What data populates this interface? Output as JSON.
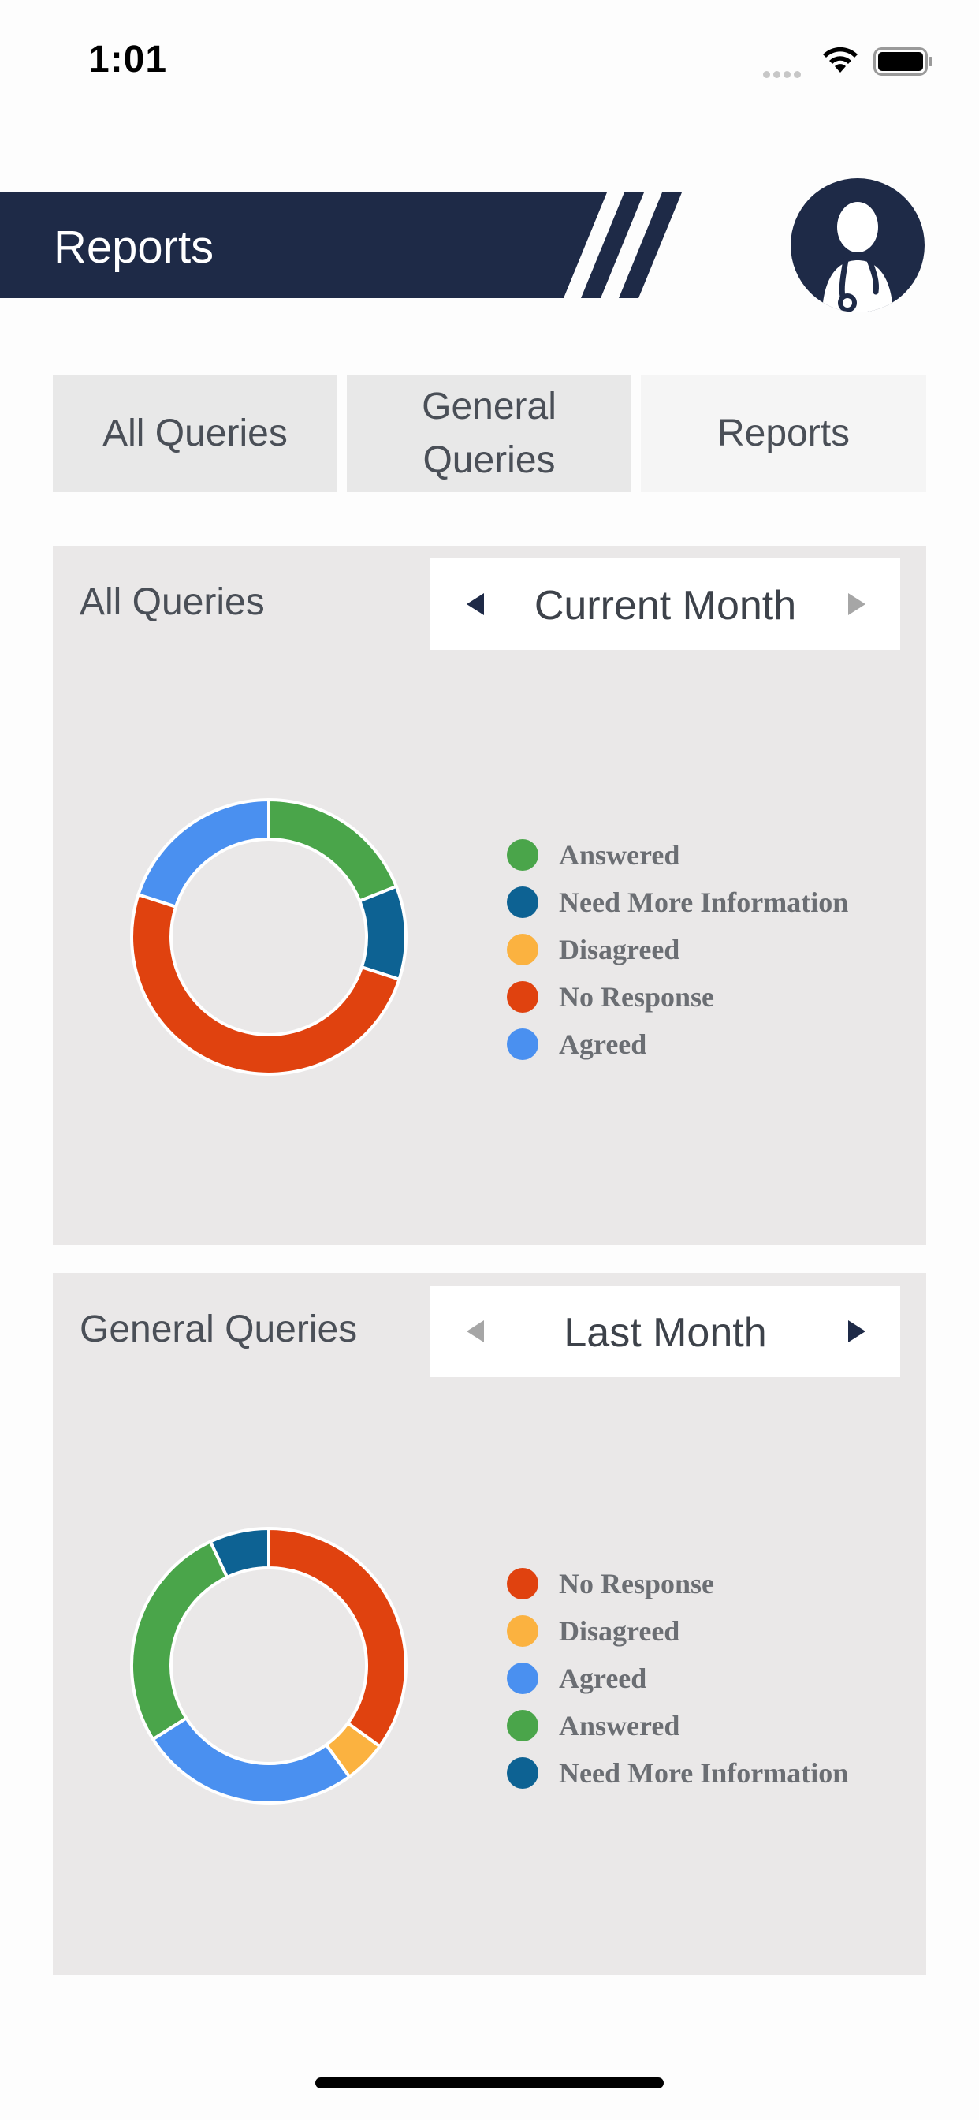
{
  "status_bar": {
    "time": "1:01",
    "icons": [
      "signal-dots-icon",
      "wifi-icon",
      "battery-icon"
    ]
  },
  "header": {
    "title": "Reports",
    "avatar_icon": "doctor-stethoscope-icon",
    "colors": {
      "banner": "#1e2a47",
      "title_text": "#ffffff"
    }
  },
  "tabs": [
    {
      "label": "All Queries",
      "selected": false
    },
    {
      "label": "General Queries",
      "selected": false
    },
    {
      "label": "Reports",
      "selected": true
    }
  ],
  "panels": [
    {
      "title": "All Queries",
      "period": {
        "label": "Current Month",
        "prev_icon": "triangle-left-icon",
        "next_icon": "triangle-right-icon",
        "prev_enabled": true,
        "next_enabled": false
      },
      "legend": [
        {
          "label": "Answered",
          "color": "#4aa54a"
        },
        {
          "label": "Need More Information",
          "color": "#0d6293"
        },
        {
          "label": "Disagreed",
          "color": "#fbb240"
        },
        {
          "label": "No Response",
          "color": "#e0420f"
        },
        {
          "label": "Agreed",
          "color": "#4a90f0"
        }
      ]
    },
    {
      "title": "General Queries",
      "period": {
        "label": "Last Month",
        "prev_icon": "triangle-left-icon",
        "next_icon": "triangle-right-icon",
        "prev_enabled": false,
        "next_enabled": true
      },
      "legend": [
        {
          "label": "No Response",
          "color": "#e0420f"
        },
        {
          "label": "Disagreed",
          "color": "#fbb240"
        },
        {
          "label": "Agreed",
          "color": "#4a90f0"
        },
        {
          "label": "Answered",
          "color": "#4aa54a"
        },
        {
          "label": "Need More Information",
          "color": "#0d6293"
        }
      ]
    }
  ],
  "chart_data": [
    {
      "type": "pie",
      "donut": true,
      "legend_position": "right",
      "categories": [
        "Answered",
        "Need More Information",
        "Disagreed",
        "No Response",
        "Agreed"
      ],
      "values": [
        19,
        11,
        0,
        50,
        20
      ],
      "colors": [
        "#4aa54a",
        "#0d6293",
        "#fbb240",
        "#e0420f",
        "#4a90f0"
      ]
    },
    {
      "type": "pie",
      "donut": true,
      "legend_position": "right",
      "categories": [
        "No Response",
        "Disagreed",
        "Agreed",
        "Answered",
        "Need More Information"
      ],
      "values": [
        35,
        5,
        26,
        27,
        7
      ],
      "colors": [
        "#e0420f",
        "#fbb240",
        "#4a90f0",
        "#4aa54a",
        "#0d6293"
      ]
    }
  ]
}
